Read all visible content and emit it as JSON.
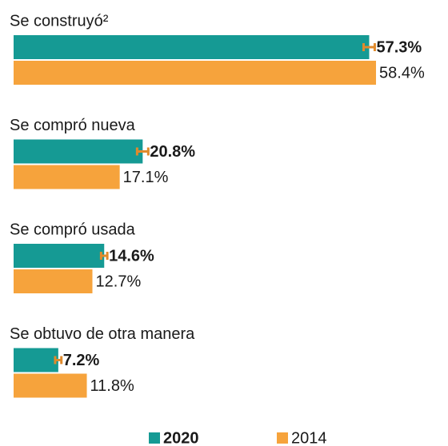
{
  "chart_data": {
    "type": "bar",
    "orientation": "horizontal",
    "categories": [
      "Se construyó²",
      "Se compró nueva",
      "Se compró usada",
      "Se obtuvo de otra manera"
    ],
    "series": [
      {
        "name": "2020",
        "color": "#159a94",
        "values": [
          57.3,
          20.8,
          14.6,
          7.2
        ],
        "value_labels": [
          "57.3%",
          "20.8%",
          "14.6%",
          "7.2%"
        ],
        "errors": [
          0.9,
          0.9,
          0.5,
          0.5
        ],
        "error_color": "#e08a2c"
      },
      {
        "name": "2014",
        "color": "#f6a33c",
        "values": [
          58.4,
          17.1,
          12.7,
          11.8
        ],
        "value_labels": [
          "58.4%",
          "17.1%",
          "12.7%",
          "11.8%"
        ]
      }
    ],
    "xlim": [
      0,
      70
    ],
    "legend": "bottom"
  }
}
